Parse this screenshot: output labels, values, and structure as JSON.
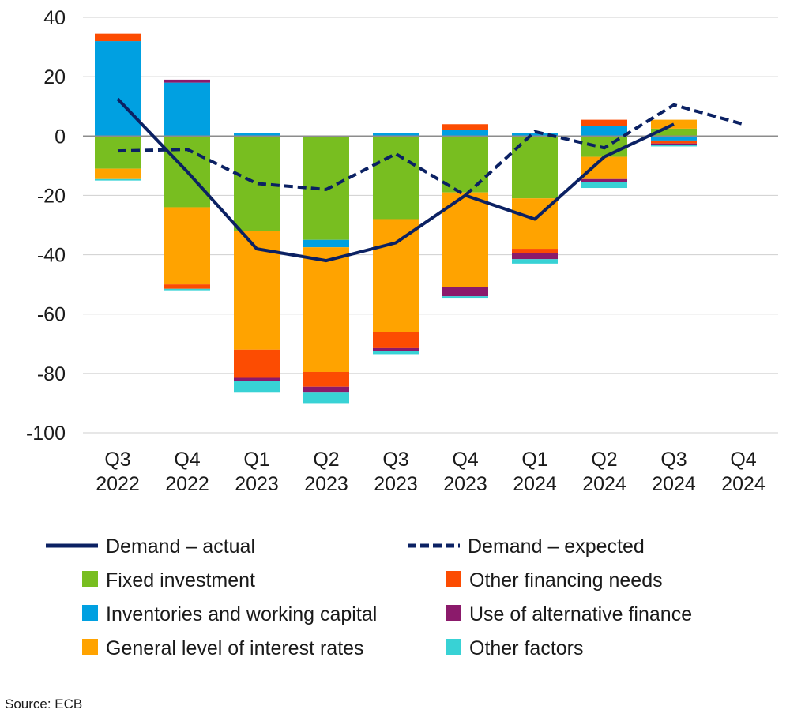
{
  "chart_data": {
    "type": "bar",
    "stacked": true,
    "categories": [
      [
        "Q3",
        "2022"
      ],
      [
        "Q4",
        "2022"
      ],
      [
        "Q1",
        "2023"
      ],
      [
        "Q2",
        "2023"
      ],
      [
        "Q3",
        "2023"
      ],
      [
        "Q4",
        "2023"
      ],
      [
        "Q1",
        "2024"
      ],
      [
        "Q2",
        "2024"
      ],
      [
        "Q3",
        "2024"
      ],
      [
        "Q4",
        "2024"
      ]
    ],
    "ylim": [
      -100,
      40
    ],
    "yticks": [
      40,
      20,
      0,
      -20,
      -40,
      -60,
      -80,
      -100
    ],
    "grid": true,
    "series": [
      {
        "name": "Fixed investment",
        "color": "#78be20",
        "values": [
          -11,
          -24,
          -32,
          -35,
          -28,
          -19,
          -21,
          -7,
          2.5,
          null
        ]
      },
      {
        "name": "Inventories and working capital",
        "color": "#00a0e1",
        "values": [
          32,
          18,
          1,
          -2.5,
          1,
          2,
          1,
          3.5,
          -1.5,
          null
        ]
      },
      {
        "name": "General level of interest rates",
        "color": "#ffa300",
        "values": [
          -3.5,
          -26,
          -40,
          -42,
          -38,
          -32,
          -17,
          -7.5,
          3,
          null
        ]
      },
      {
        "name": "Other financing needs",
        "color": "#fc4c02",
        "values": [
          2.5,
          -1.5,
          -9.5,
          -5,
          -5.5,
          2,
          -1.5,
          2,
          -1,
          null
        ]
      },
      {
        "name": "Use of alternative finance",
        "color": "#8b1a6b",
        "values": [
          0,
          1,
          -1,
          -2,
          -1,
          -3,
          -2,
          -1,
          -0.5,
          null
        ]
      },
      {
        "name": "Other factors",
        "color": "#38d2d5",
        "values": [
          -0.5,
          -0.5,
          -4,
          -3.5,
          -1,
          -0.5,
          -1.5,
          -2,
          -0.5,
          null
        ]
      }
    ],
    "lines": [
      {
        "name": "Demand – actual",
        "color": "#0b2163",
        "style": "solid",
        "values": [
          12.5,
          -12,
          -38,
          -42,
          -36,
          -20,
          -28,
          -7,
          4,
          null
        ]
      },
      {
        "name": "Demand – expected",
        "color": "#0b2163",
        "style": "dashed",
        "values": [
          -5,
          -4.5,
          -16,
          -18,
          -6,
          -20,
          1.5,
          -4,
          10.5,
          4
        ]
      }
    ],
    "legend": {
      "placement": "bottom",
      "left_column": [
        "Demand – actual",
        "Fixed investment",
        "Inventories and working capital",
        "General level of interest rates"
      ],
      "right_column": [
        "Demand – expected",
        "Other financing needs",
        "Use of alternative finance",
        "Other factors"
      ]
    }
  },
  "source_text": "Source: ECB"
}
